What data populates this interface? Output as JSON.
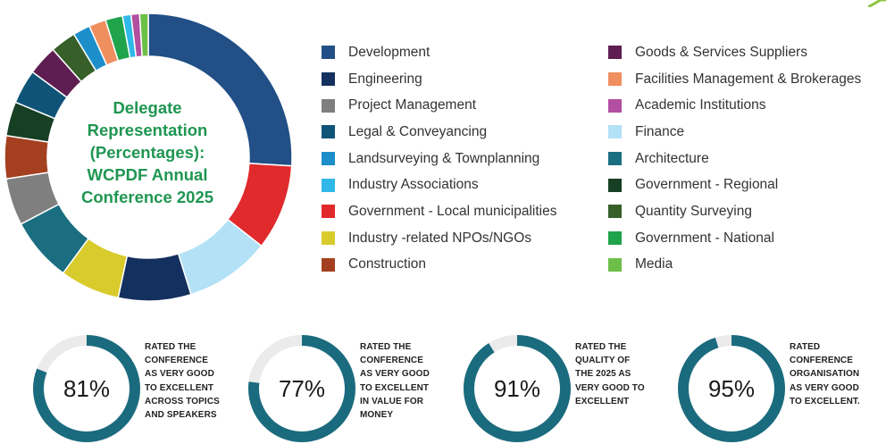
{
  "chart_data": {
    "type": "pie",
    "donut": true,
    "title_lines": [
      "Delegate",
      "Representation",
      "(Percentages):",
      "WCPDF Annual",
      "Conference 2025"
    ],
    "labels": [
      "Development",
      "Government - Local municipalities",
      "Finance",
      "Engineering",
      "Industry -related NPOs/NGOs",
      "Architecture",
      "Project Management",
      "Construction",
      "Government - Regional",
      "Legal & Conveyancing",
      "Goods & Services Suppliers",
      "Quantity Surveying",
      "Landsurveying & Townplanning",
      "Facilities Management & Brokerages",
      "Government - National",
      "Industry Associations",
      "Academic Institutions",
      "Media"
    ],
    "values": [
      27,
      10,
      10,
      8.5,
      7,
      7.5,
      5.5,
      5,
      4,
      4,
      3.5,
      3,
      2,
      2,
      2,
      1,
      1,
      1
    ],
    "colors": [
      "#214f86",
      "#e12a2b",
      "#b3e1f6",
      "#14305e",
      "#d8cb2c",
      "#1a6e80",
      "#7f7f7f",
      "#a4401f",
      "#173f24",
      "#0f5478",
      "#5e1e51",
      "#365f2a",
      "#1c8fcb",
      "#ef8e5f",
      "#1fa34b",
      "#2fb8e8",
      "#b24fa0",
      "#6cbf48"
    ]
  },
  "legend": {
    "left": [
      {
        "label": "Development",
        "color": "#214f86"
      },
      {
        "label": "Engineering",
        "color": "#14305e"
      },
      {
        "label": "Project Management",
        "color": "#7f7f7f"
      },
      {
        "label": "Legal & Conveyancing",
        "color": "#0f5478"
      },
      {
        "label": "Landsurveying & Townplanning",
        "color": "#1c8fcb"
      },
      {
        "label": "Industry Associations",
        "color": "#2fb8e8"
      },
      {
        "label": "Government - Local municipalities",
        "color": "#e12a2b"
      },
      {
        "label": "Industry -related NPOs/NGOs",
        "color": "#d8cb2c"
      },
      {
        "label": "Construction",
        "color": "#a4401f"
      }
    ],
    "right": [
      {
        "label": "Goods & Services Suppliers",
        "color": "#5e1e51"
      },
      {
        "label": "Facilities Management & Brokerages",
        "color": "#ef8e5f"
      },
      {
        "label": "Academic Institutions",
        "color": "#b24fa0"
      },
      {
        "label": "Finance",
        "color": "#b3e1f6"
      },
      {
        "label": "Architecture",
        "color": "#1a6e80"
      },
      {
        "label": "Government - Regional",
        "color": "#173f24"
      },
      {
        "label": "Quantity Surveying",
        "color": "#365f2a"
      },
      {
        "label": "Government - National",
        "color": "#1fa34b"
      },
      {
        "label": "Media",
        "color": "#6cbf48"
      }
    ]
  },
  "ratings": [
    {
      "percent": 81,
      "value_label": "81%",
      "lines": [
        "RATED THE",
        "CONFERENCE",
        "AS VERY GOOD",
        "TO EXCELLENT",
        "ACROSS TOPICS",
        "AND SPEAKERS"
      ]
    },
    {
      "percent": 77,
      "value_label": "77%",
      "lines": [
        "RATED THE",
        "CONFERENCE",
        "AS VERY GOOD",
        "TO EXCELLENT",
        "IN VALUE FOR",
        "MONEY"
      ]
    },
    {
      "percent": 91,
      "value_label": "91%",
      "lines": [
        "RATED THE",
        "QUALITY OF",
        "THE 2025 AS",
        "VERY GOOD TO",
        "EXCELLENT"
      ]
    },
    {
      "percent": 95,
      "value_label": "95%",
      "lines": [
        "RATED",
        "CONFERENCE",
        "ORGANISATION",
        "AS VERY GOOD",
        "TO EXCELLENT."
      ]
    }
  ],
  "colors": {
    "gauge_fill": "#1b6b7e",
    "gauge_track": "#ebebeb",
    "title_green": "#1f9652",
    "accent_green": "#8dc63f"
  }
}
